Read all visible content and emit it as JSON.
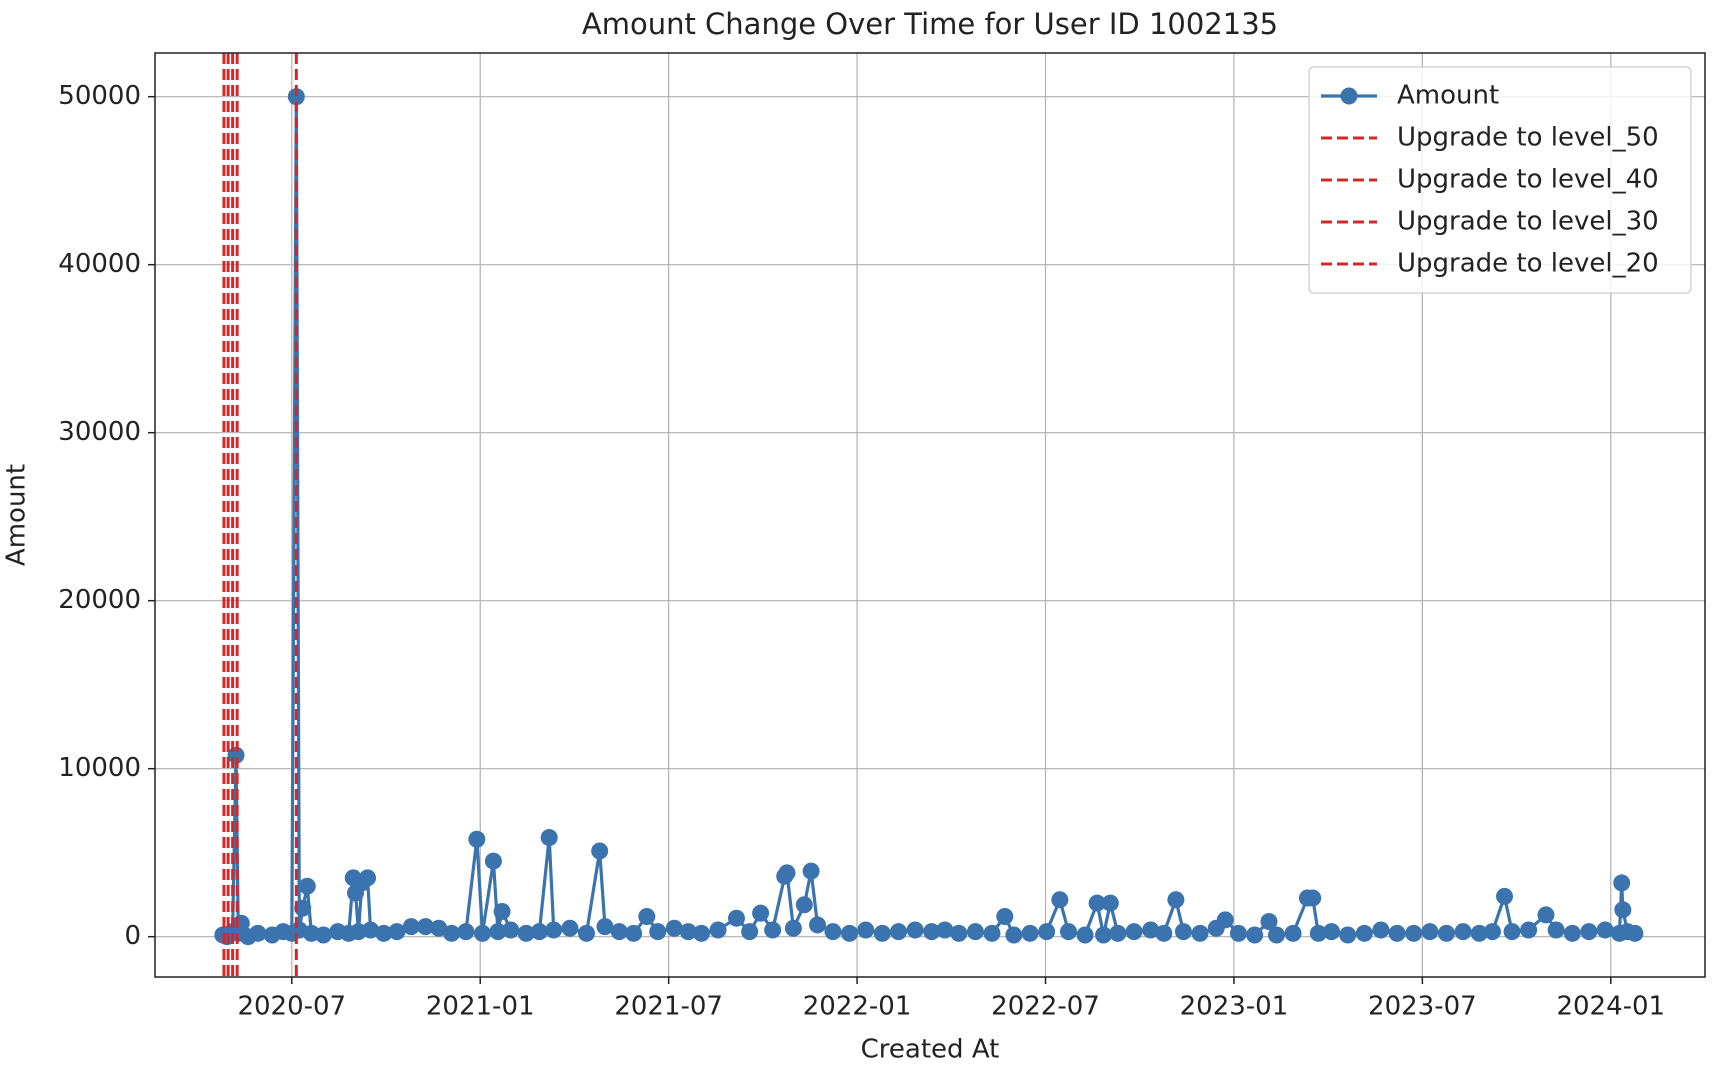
{
  "chart_data": {
    "type": "line",
    "title": "Amount Change Over Time for User ID 1002135",
    "x_label": "Created At",
    "y_label": "Amount",
    "x": [
      2020.317,
      2020.328,
      2020.343,
      2020.352,
      2020.358,
      2020.366,
      2020.384,
      2020.41,
      2020.448,
      2020.477,
      2020.5,
      2020.512,
      2020.52,
      2020.529,
      2020.541,
      2020.552,
      2020.584,
      2020.622,
      2020.651,
      2020.663,
      2020.669,
      2020.677,
      2020.686,
      2020.701,
      2020.709,
      2020.744,
      2020.779,
      2020.817,
      2020.855,
      2020.89,
      2020.924,
      2020.962,
      2020.991,
      2021.006,
      2021.035,
      2021.047,
      2021.058,
      2021.081,
      2021.122,
      2021.157,
      2021.183,
      2021.195,
      2021.238,
      2021.282,
      2021.317,
      2021.331,
      2021.369,
      2021.407,
      2021.442,
      2021.471,
      2021.515,
      2021.552,
      2021.587,
      2021.631,
      2021.68,
      2021.715,
      2021.744,
      2021.776,
      2021.808,
      2021.814,
      2021.831,
      2021.86,
      2021.878,
      2021.895,
      2021.936,
      2021.98,
      2022.023,
      2022.067,
      2022.11,
      2022.154,
      2022.198,
      2022.233,
      2022.27,
      2022.314,
      2022.358,
      2022.392,
      2022.416,
      2022.459,
      2022.503,
      2022.538,
      2022.561,
      2022.605,
      2022.637,
      2022.654,
      2022.672,
      2022.692,
      2022.735,
      2022.779,
      2022.814,
      2022.846,
      2022.866,
      2022.91,
      2022.953,
      2022.977,
      2023.012,
      2023.055,
      2023.093,
      2023.113,
      2023.157,
      2023.195,
      2023.209,
      2023.224,
      2023.259,
      2023.302,
      2023.346,
      2023.39,
      2023.433,
      2023.477,
      2023.52,
      2023.564,
      2023.608,
      2023.651,
      2023.686,
      2023.718,
      2023.738,
      2023.782,
      2023.828,
      2023.855,
      2023.898,
      2023.942,
      2023.985,
      2024.023,
      2024.029,
      2024.032,
      2024.044,
      2024.064
    ],
    "series": [
      {
        "name": "Amount",
        "color": "#3a73ad",
        "values": [
          100,
          0,
          300,
          10800,
          200,
          800,
          0,
          200,
          100,
          300,
          200,
          50000,
          400,
          1700,
          3000,
          200,
          100,
          300,
          200,
          3500,
          2600,
          300,
          3200,
          3500,
          400,
          200,
          300,
          600,
          600,
          500,
          200,
          300,
          5800,
          200,
          4500,
          300,
          1500,
          400,
          200,
          300,
          5900,
          400,
          500,
          200,
          5100,
          600,
          300,
          200,
          1200,
          300,
          500,
          300,
          200,
          400,
          1100,
          300,
          1400,
          400,
          3600,
          3800,
          500,
          1900,
          3900,
          700,
          300,
          200,
          400,
          200,
          300,
          400,
          300,
          400,
          200,
          300,
          200,
          1200,
          100,
          200,
          300,
          2200,
          300,
          100,
          2000,
          100,
          2000,
          200,
          300,
          400,
          200,
          2200,
          300,
          200,
          500,
          1000,
          200,
          100,
          900,
          100,
          200,
          2300,
          2300,
          200,
          300,
          100,
          200,
          400,
          200,
          200,
          300,
          200,
          300,
          200,
          300,
          2400,
          300,
          400,
          1300,
          400,
          200,
          300,
          400,
          200,
          3200,
          1600,
          300,
          200
        ]
      }
    ],
    "vlines": [
      {
        "name": "Upgrade to level_50",
        "color": "#d62728",
        "x": [
          2020.32
        ]
      },
      {
        "name": "Upgrade to level_40",
        "color": "#d62728",
        "x": [
          2020.331
        ]
      },
      {
        "name": "Upgrade to level_30",
        "color": "#d62728",
        "x": [
          2020.343
        ]
      },
      {
        "name": "Upgrade to level_20",
        "color": "#d62728",
        "x": [
          2020.355,
          2020.512
        ]
      }
    ],
    "xlim": [
      2020.137,
      2024.25
    ],
    "ylim": [
      -2400,
      52600
    ],
    "xticks": [
      {
        "value": 2020.5,
        "label": "2020-07"
      },
      {
        "value": 2021.0,
        "label": "2021-01"
      },
      {
        "value": 2021.5,
        "label": "2021-07"
      },
      {
        "value": 2022.0,
        "label": "2022-01"
      },
      {
        "value": 2022.5,
        "label": "2022-07"
      },
      {
        "value": 2023.0,
        "label": "2023-01"
      },
      {
        "value": 2023.5,
        "label": "2023-07"
      },
      {
        "value": 2024.0,
        "label": "2024-01"
      }
    ],
    "yticks": [
      0,
      10000,
      20000,
      30000,
      40000,
      50000
    ],
    "grid": true,
    "legend": "upper right"
  }
}
